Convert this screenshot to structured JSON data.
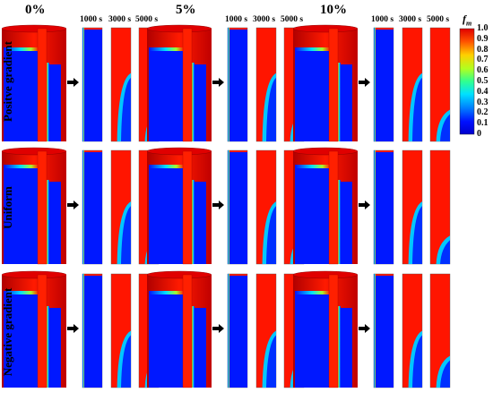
{
  "columns": [
    {
      "label": "0%"
    },
    {
      "label": "5%"
    },
    {
      "label": "10%"
    }
  ],
  "times": [
    "1000 s",
    "3000 s",
    "5000 s"
  ],
  "rows": [
    {
      "label": "Positve gradient"
    },
    {
      "label": "Uniform"
    },
    {
      "label": "Negative gradient"
    }
  ],
  "colorbar": {
    "title": "f",
    "subscript": "m",
    "ticks": [
      "1.0",
      "0.9",
      "0.8",
      "0.7",
      "0.6",
      "0.5",
      "0.4",
      "0.3",
      "0.2",
      "0.1",
      "0"
    ]
  }
}
